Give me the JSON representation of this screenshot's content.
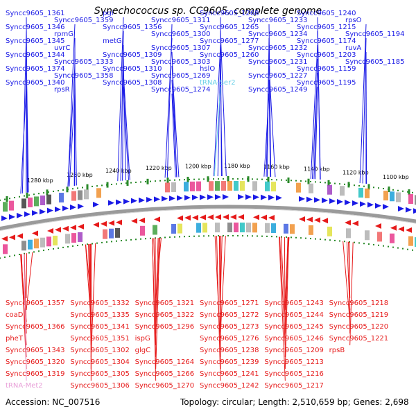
{
  "title": "Synechococcus sp. CC9605, complete genome",
  "accession": "Accession: NC_007516",
  "summary": "Topology: circular; Length: 2,510,659 bp; Genes: 2,698",
  "colors": {
    "plus": "#1a1ae6",
    "minus": "#e61a1a",
    "trna": "#6ad0e8",
    "trna_minus": "#e8a0d8",
    "backbone": "#808080",
    "ticks": "#2a8a2a"
  },
  "ticks": [
    "1100 kbp",
    "1120 kbp",
    "1140 kbp",
    "1160 kbp",
    "1180 kbp",
    "1200 kbp",
    "1220 kbp",
    "1240 kbp",
    "1260 kbp",
    "1280 kbp"
  ],
  "top_labels": [
    "Syncc9605_1361",
    "Syncc9605_1346",
    "Syncc9605_1345",
    "Syncc9605_1344",
    "Syncc9605_1374",
    "Syncc9605_1340",
    "Syncc9605_1359",
    "rpmG",
    "uvrC",
    "Syncc9605_1333",
    "Syncc9605_1358",
    "rpsR",
    "pgi",
    "Syncc9605_1356",
    "metG",
    "Syncc9605_1309",
    "Syncc9605_1310",
    "Syncc9605_1308",
    "Syncc9605_1311",
    "Syncc9605_1300",
    "Syncc9605_1307",
    "Syncc9605_1303",
    "Syncc9605_1269",
    "Syncc9605_1274",
    "Syncc9605_1268",
    "Syncc9605_1265",
    "Syncc9605_1277",
    "Syncc9605_1260",
    "hslO",
    "tRNA-Ser2",
    "Syncc9605_1233",
    "Syncc9605_1234",
    "Syncc9605_1232",
    "Syncc9605_1231",
    "Syncc9605_1227",
    "Syncc9605_1249",
    "Syncc9605_1240",
    "Syncc9605_1215",
    "Syncc9605_1174",
    "Syncc9605_1203",
    "Syncc9605_1159",
    "Syncc9605_1195",
    "rpsO",
    "Syncc9605_1194",
    "ruvA",
    "Syncc9605_1185"
  ],
  "bottom_labels": [
    "Syncc9605_1357",
    "coaD",
    "Syncc9605_1366",
    "pheT",
    "Syncc9605_1343",
    "Syncc9605_1320",
    "Syncc9605_1319",
    "tRNA-Met2",
    "Syncc9605_1332",
    "Syncc9605_1335",
    "Syncc9605_1341",
    "Syncc9605_1351",
    "Syncc9605_1302",
    "Syncc9605_1304",
    "Syncc9605_1305",
    "Syncc9605_1306",
    "Syncc9605_1321",
    "Syncc9605_1322",
    "Syncc9605_1296",
    "ispG",
    "glgC",
    "Syncc9605_1264",
    "Syncc9605_1266",
    "Syncc9605_1270",
    "Syncc9605_1271",
    "Syncc9605_1272",
    "Syncc9605_1273",
    "Syncc9605_1276",
    "Syncc9605_1238",
    "Syncc9605_1239",
    "Syncc9605_1241",
    "Syncc9605_1242",
    "Syncc9605_1243",
    "Syncc9605_1244",
    "Syncc9605_1245",
    "Syncc9605_1246",
    "Syncc9605_1209",
    "Syncc9605_1213",
    "Syncc9605_1216",
    "Syncc9605_1217",
    "Syncc9605_1218",
    "Syncc9605_1219",
    "Syncc9605_1220",
    "Syncc9605_1221",
    "rpsB"
  ]
}
